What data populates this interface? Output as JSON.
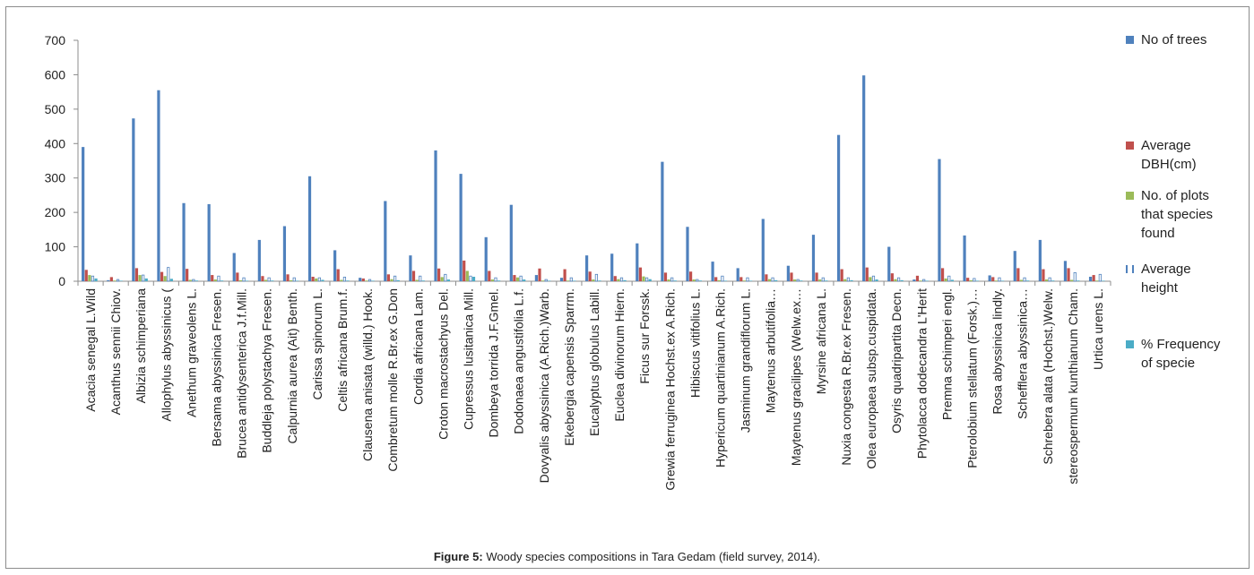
{
  "caption": {
    "label": "Figure 5:",
    "text": " Woody species compositions in Tara Gedam (field survey, 2014)."
  },
  "chart_data": {
    "type": "bar",
    "ylim": [
      0,
      700
    ],
    "yticks": [
      0,
      100,
      200,
      300,
      400,
      500,
      600,
      700
    ],
    "grid": false,
    "legend_position": "right",
    "categories": [
      "Acacia senegal L.Wild",
      "Acanthus sennii Chiov.",
      "Albizia schimperiana",
      "Allophylus abyssinicus (",
      "Anethum graveolens L.",
      "Bersama abyssinica Fresen.",
      "Brucea antidysenterica J.f.Mill.",
      "Buddleja polystachya Fresen.",
      "Calpurnia aurea (Ait) Benth.",
      "Carissa spinorum L.",
      "Celtis africana Brum.f.",
      "Clausena anisata (willd.) Hook.",
      "Combretum molle R.Br.ex G.Don",
      "Cordia africana Lam.",
      "Croton macrostachyus Del.",
      "Cupressus lusitanica Mill.",
      "Dombeya torrida J.F.Gmel.",
      "Dodonaea angustifolia L.f.",
      "Dovyalis abyssinica (A.Rich.)Warb.",
      "Ekebergia capensis Sparrm.",
      "Eucalyptus globulus Labill.",
      "Euclea divinorum Hiern.",
      "Ficus sur Forssk.",
      "Grewia ferruginea Hochst.ex A.Rich.",
      "Hibiscus vitifolius L.",
      "Hypericum quartinianum A.Rich.",
      "Jasminum grandiflorum L.",
      "Maytenus arbutifolia…",
      "Maytenus gracilipes (Welw.ex…",
      "Myrsine africana L.",
      "Nuxia congesta R.Br.ex Fresen.",
      "Olea europaea subsp.cuspidata.",
      "Osyris quadripartita Decn.",
      "Phytolacca dodecandra L'Herit",
      "Premna schimperi engl.",
      "Pterolobium stellatum (Forsk.)…",
      "Rosa abyssinica lindly.",
      "Schefflera abyssinica…",
      "Schrebera alata (Hochst.)Welw.",
      "stereospermum kunthianum Cham.",
      "Urtica urens L."
    ],
    "series": [
      {
        "name": "No of trees",
        "color": "#4f81bd",
        "values": [
          390,
          3,
          473,
          555,
          227,
          224,
          82,
          120,
          160,
          305,
          90,
          10,
          233,
          75,
          380,
          312,
          128,
          222,
          18,
          10,
          75,
          80,
          110,
          347,
          158,
          57,
          38,
          181,
          45,
          135,
          425,
          598,
          100,
          5,
          355,
          133,
          17,
          88,
          120,
          59,
          13
        ]
      },
      {
        "name": "Average DBH(cm)",
        "color": "#c0504d",
        "values": [
          33,
          12,
          38,
          27,
          36,
          18,
          25,
          15,
          20,
          13,
          35,
          8,
          20,
          30,
          37,
          60,
          30,
          18,
          37,
          35,
          28,
          15,
          40,
          25,
          28,
          12,
          12,
          20,
          25,
          25,
          35,
          40,
          23,
          16,
          38,
          10,
          12,
          38,
          35,
          38,
          18
        ]
      },
      {
        "name": "No. of plots that species found",
        "color": "#9bbb59",
        "values": [
          18,
          2,
          18,
          15,
          4,
          5,
          3,
          4,
          3,
          8,
          4,
          2,
          6,
          4,
          12,
          30,
          5,
          11,
          2,
          2,
          5,
          6,
          14,
          5,
          5,
          3,
          2,
          6,
          5,
          5,
          6,
          12,
          6,
          2,
          8,
          3,
          2,
          4,
          5,
          4,
          2
        ]
      },
      {
        "name": "Average height",
        "color": "#4f81bd",
        "values": [
          15,
          5,
          18,
          40,
          5,
          15,
          10,
          10,
          10,
          10,
          12,
          5,
          15,
          15,
          20,
          15,
          10,
          15,
          5,
          10,
          20,
          10,
          10,
          10,
          5,
          15,
          10,
          10,
          5,
          10,
          10,
          15,
          10,
          5,
          15,
          8,
          10,
          10,
          10,
          25,
          20
        ]
      },
      {
        "name": "% Frequency of specie",
        "color": "#4bacc6",
        "values": [
          8,
          1,
          8,
          7,
          2,
          2,
          1,
          2,
          1,
          4,
          2,
          1,
          3,
          2,
          5,
          13,
          2,
          5,
          1,
          1,
          2,
          3,
          6,
          2,
          2,
          1,
          1,
          3,
          2,
          2,
          3,
          5,
          3,
          1,
          4,
          1,
          1,
          2,
          2,
          2,
          1
        ]
      }
    ]
  },
  "legend": [
    {
      "label_lines": [
        "No of trees"
      ],
      "color": "#4f81bd",
      "style": "solid"
    },
    {
      "label_lines": [
        "Average",
        "DBH(cm)"
      ],
      "color": "#c0504d",
      "style": "solid"
    },
    {
      "label_lines": [
        "No. of plots",
        "that species",
        "found"
      ],
      "color": "#9bbb59",
      "style": "solid"
    },
    {
      "label_lines": [
        "Average",
        "height"
      ],
      "color": "#4f81bd",
      "style": "outline"
    },
    {
      "label_lines": [
        "% Frequency",
        "of specie"
      ],
      "color": "#4bacc6",
      "style": "solid"
    }
  ]
}
